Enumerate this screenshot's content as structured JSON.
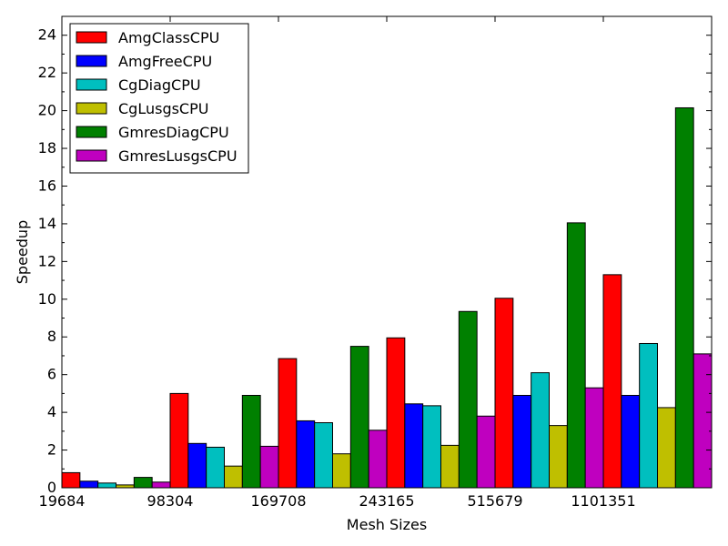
{
  "chart_data": {
    "type": "bar",
    "xlabel": "Mesh Sizes",
    "ylabel": "Speedup",
    "ylim": [
      0,
      25
    ],
    "yticks": [
      0,
      2,
      4,
      6,
      8,
      10,
      12,
      14,
      16,
      18,
      20,
      22,
      24
    ],
    "categories": [
      "19684",
      "98304",
      "169708",
      "243165",
      "515679",
      "1101351"
    ],
    "legend_position": "top-left",
    "grid": false,
    "series": [
      {
        "name": "AmgClassCPU",
        "color": "#ff0000",
        "values": [
          0.8,
          5.0,
          6.85,
          7.95,
          10.05,
          11.3
        ]
      },
      {
        "name": "AmgFreeCPU",
        "color": "#0000ff",
        "values": [
          0.35,
          2.35,
          3.55,
          4.45,
          4.9,
          4.9
        ]
      },
      {
        "name": "CgDiagCPU",
        "color": "#00bfbf",
        "values": [
          0.25,
          2.15,
          3.45,
          4.35,
          6.1,
          7.65
        ]
      },
      {
        "name": "CgLusgsCPU",
        "color": "#bfbf00",
        "values": [
          0.15,
          1.15,
          1.8,
          2.25,
          3.3,
          4.25
        ]
      },
      {
        "name": "GmresDiagCPU",
        "color": "#008000",
        "values": [
          0.55,
          4.9,
          7.5,
          9.35,
          14.05,
          20.15
        ]
      },
      {
        "name": "GmresLusgsCPU",
        "color": "#bf00bf",
        "values": [
          0.3,
          2.2,
          3.05,
          3.8,
          5.3,
          7.1
        ]
      }
    ]
  }
}
